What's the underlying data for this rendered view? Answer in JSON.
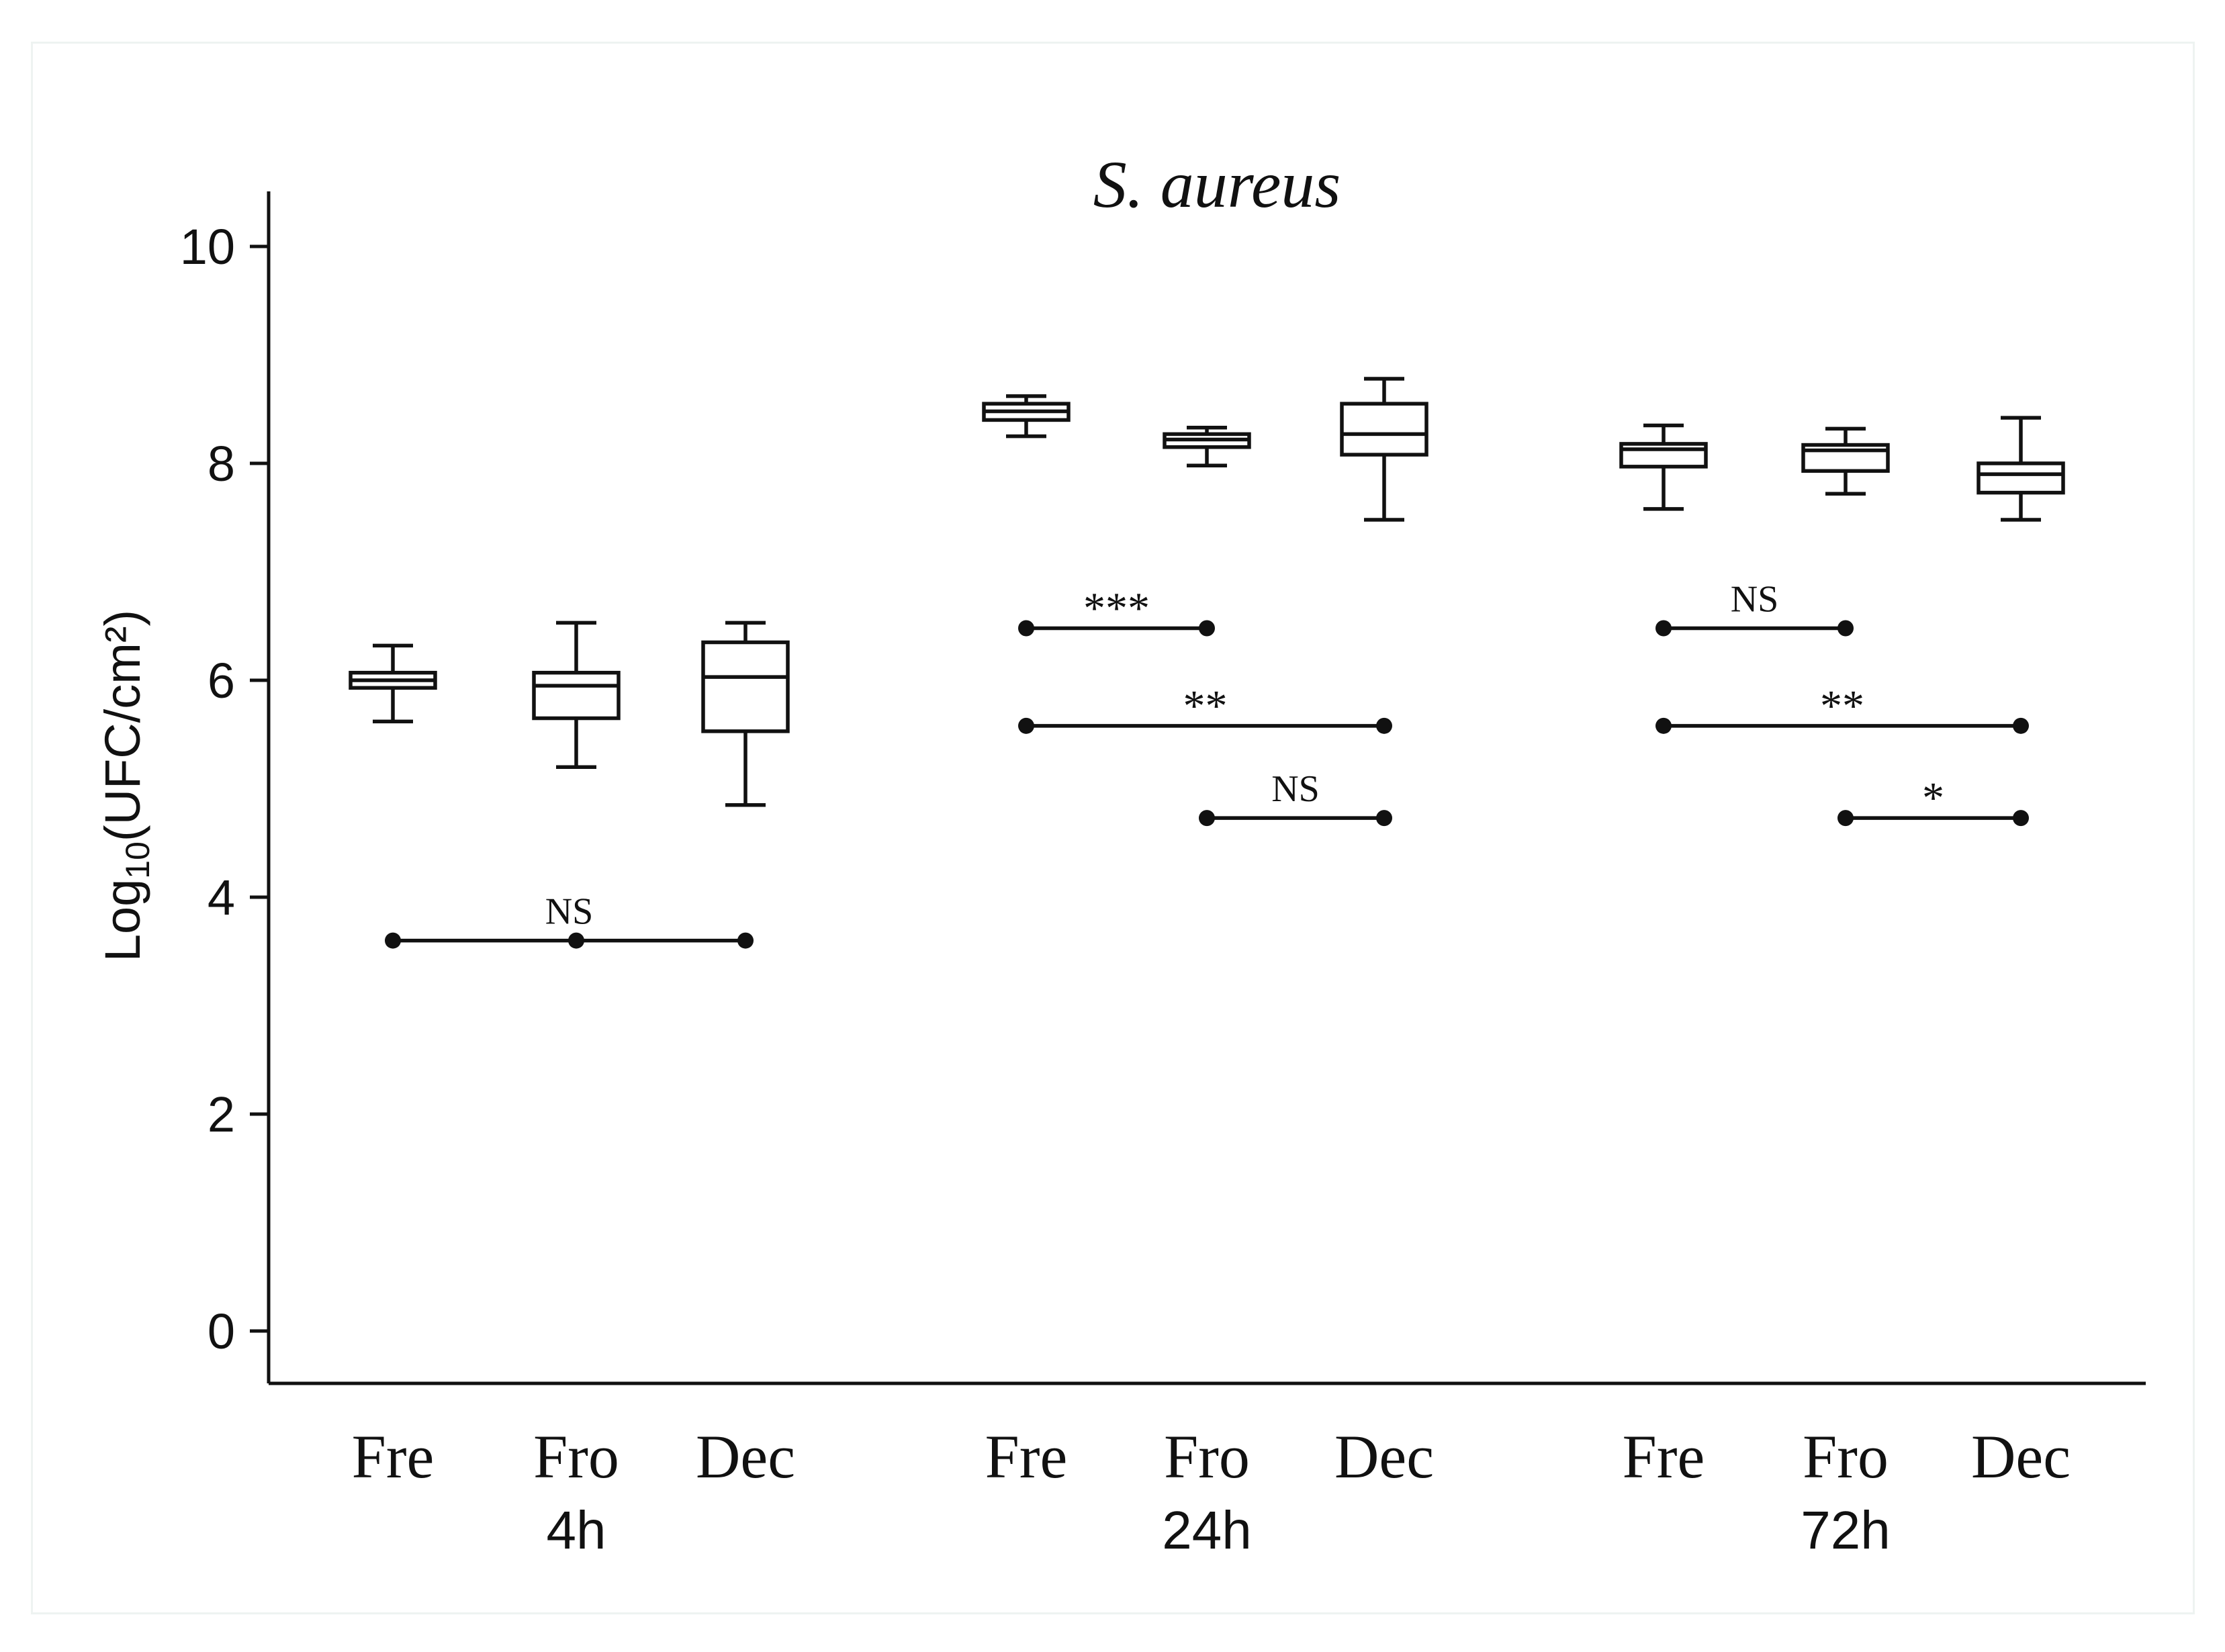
{
  "chart_data": {
    "type": "box",
    "title": "S. aureus",
    "ylabel": "Log10(UFC/cm²)",
    "ylabel_parts": {
      "pre": "Log",
      "sub": "10",
      "post": "(UFC/cm²)"
    },
    "ylim": [
      0,
      10.5
    ],
    "yticks": [
      0,
      2,
      4,
      6,
      8,
      10
    ],
    "grid": false,
    "groups": [
      {
        "label": "4h",
        "categories": [
          "Fre",
          "Fro",
          "Dec"
        ],
        "boxes": [
          {
            "min": 5.62,
            "q1": 5.93,
            "median": 6.0,
            "q3": 6.07,
            "max": 6.32
          },
          {
            "min": 5.2,
            "q1": 5.65,
            "median": 5.95,
            "q3": 6.07,
            "max": 6.53
          },
          {
            "min": 4.85,
            "q1": 5.53,
            "median": 6.03,
            "q3": 6.35,
            "max": 6.53
          }
        ]
      },
      {
        "label": "24h",
        "categories": [
          "Fre",
          "Fro",
          "Dec"
        ],
        "boxes": [
          {
            "min": 8.25,
            "q1": 8.4,
            "median": 8.48,
            "q3": 8.55,
            "max": 8.62
          },
          {
            "min": 7.98,
            "q1": 8.15,
            "median": 8.22,
            "q3": 8.27,
            "max": 8.33
          },
          {
            "min": 7.48,
            "q1": 8.08,
            "median": 8.27,
            "q3": 8.55,
            "max": 8.78
          }
        ]
      },
      {
        "label": "72h",
        "categories": [
          "Fre",
          "Fro",
          "Dec"
        ],
        "boxes": [
          {
            "min": 7.58,
            "q1": 7.97,
            "median": 8.13,
            "q3": 8.18,
            "max": 8.35
          },
          {
            "min": 7.72,
            "q1": 7.93,
            "median": 8.12,
            "q3": 8.17,
            "max": 8.32
          },
          {
            "min": 7.48,
            "q1": 7.73,
            "median": 7.9,
            "q3": 8.0,
            "max": 8.42
          }
        ]
      }
    ],
    "comparisons": [
      {
        "group": 0,
        "points": [
          0,
          1,
          2
        ],
        "y": 3.6,
        "label": "NS"
      },
      {
        "group": 1,
        "points": [
          0,
          1
        ],
        "y": 6.48,
        "label": "***"
      },
      {
        "group": 1,
        "points": [
          0,
          2
        ],
        "y": 5.58,
        "label": "**"
      },
      {
        "group": 1,
        "points": [
          1,
          2
        ],
        "y": 4.73,
        "label": "NS"
      },
      {
        "group": 2,
        "points": [
          0,
          1
        ],
        "y": 6.48,
        "label": "NS"
      },
      {
        "group": 2,
        "points": [
          0,
          2
        ],
        "y": 5.58,
        "label": "**"
      },
      {
        "group": 2,
        "points": [
          1,
          2
        ],
        "y": 4.73,
        "label": "*"
      }
    ]
  }
}
